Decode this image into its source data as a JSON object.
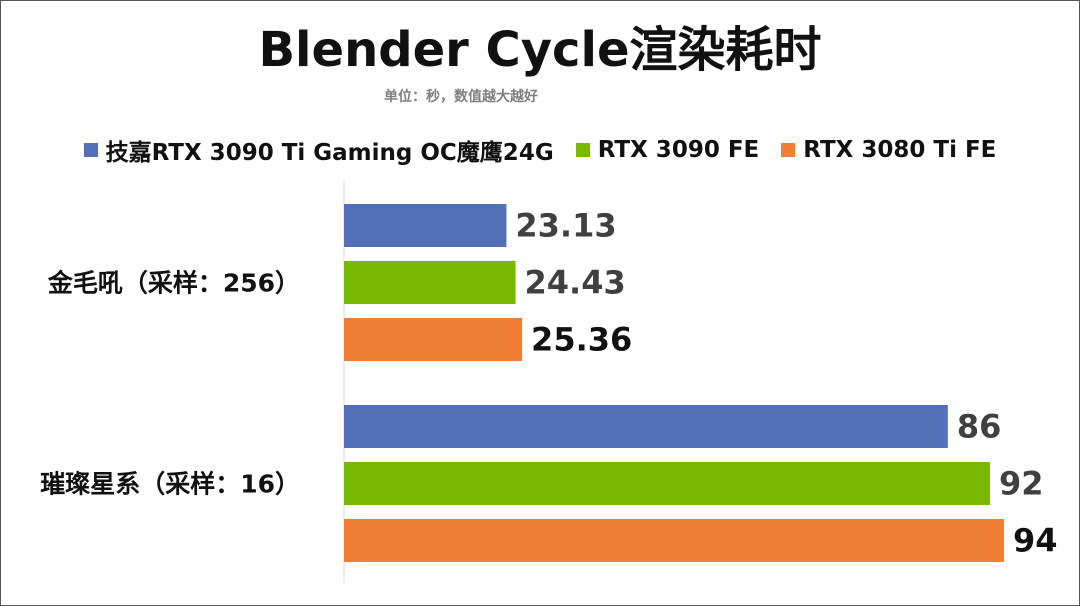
{
  "chart_data": {
    "type": "bar",
    "orientation": "horizontal",
    "title": "Blender Cycle渲染耗时",
    "subtitle": "单位：秒，数值越大越好",
    "categories": [
      "金毛吼（采样：256）",
      "璀璨星系（采样：16）"
    ],
    "series": [
      {
        "name": "技嘉RTX 3090 Ti Gaming OC魔鹰24G",
        "values": [
          23.13,
          86
        ],
        "labels": [
          "23.13",
          "86"
        ],
        "color": "#5470b8"
      },
      {
        "name": "RTX 3090 FE",
        "values": [
          24.43,
          92
        ],
        "labels": [
          "24.43",
          "92"
        ],
        "color": "#76b900"
      },
      {
        "name": "RTX 3080 Ti FE",
        "values": [
          25.36,
          94
        ],
        "labels": [
          "25.36",
          "94"
        ],
        "color": "#ef7f34"
      }
    ],
    "value_label_colors": [
      "#404040",
      "#404040",
      "#111111"
    ],
    "xlim": [
      0,
      94
    ],
    "legend_position": "top",
    "grid": false
  }
}
